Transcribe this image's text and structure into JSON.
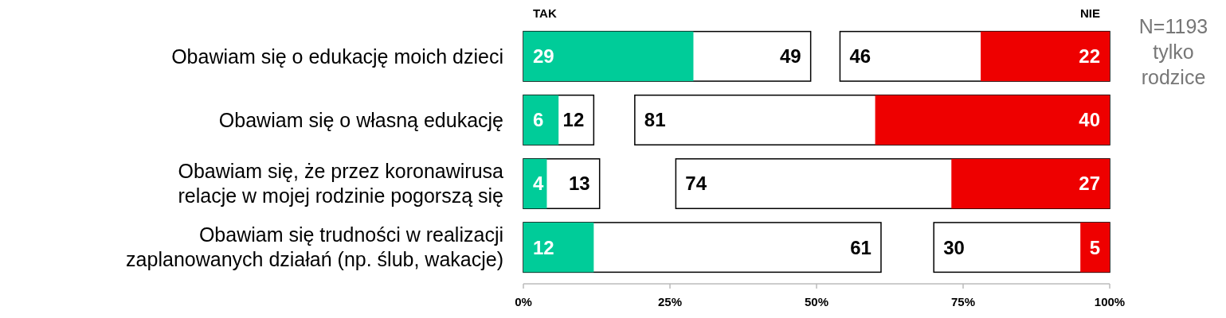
{
  "chart_data": {
    "type": "bar",
    "orientation": "horizontal",
    "categories": [
      "Obawiam się o edukację moich dzieci",
      "Obawiam się o własną edukację",
      "Obawiam się, że przez koronawirusa\nrelacje w mojej rodzinie pogorszą się",
      "Obawiam się trudności w realizacji\nzaplanowanych działań (np. ślub, wakacje)"
    ],
    "series": [
      {
        "color": "#ffffff",
        "base": [
          0,
          0,
          0,
          0
        ],
        "values": [
          49,
          12,
          13,
          61
        ]
      },
      {
        "color": "#00cc99",
        "base": [
          0,
          0,
          0,
          0
        ],
        "values": [
          29,
          6,
          4,
          12
        ]
      },
      {
        "color": "#ffffff",
        "base": [
          54,
          19,
          26,
          70
        ],
        "values": [
          46,
          81,
          74,
          30
        ]
      },
      {
        "color": "#ee0000",
        "base": [
          78,
          60,
          73,
          95
        ],
        "values": [
          22,
          40,
          27,
          5
        ]
      }
    ],
    "xlim": [
      0,
      100
    ],
    "xticks": [
      {
        "value": 0,
        "label": "0%"
      },
      {
        "value": 25,
        "label": "25%"
      },
      {
        "value": 50,
        "label": "50%"
      },
      {
        "value": 75,
        "label": "75%"
      },
      {
        "value": 100,
        "label": "100%"
      }
    ],
    "data_labels": true,
    "annotations": [
      "TAK",
      "NIE",
      "N=1193\ntylko\nrodzice"
    ]
  }
}
